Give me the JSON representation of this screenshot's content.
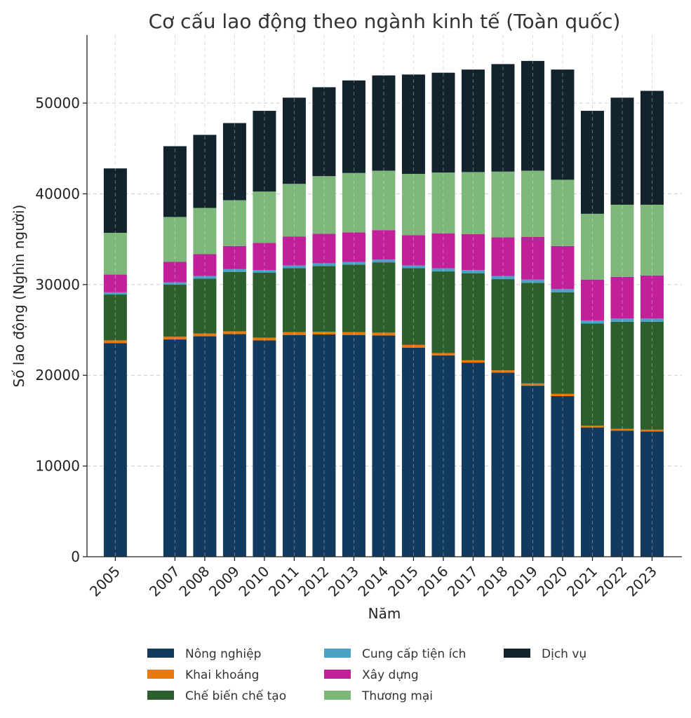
{
  "chart_data": {
    "type": "bar",
    "stacked": true,
    "title": "Cơ cấu lao động theo ngành kinh tế (Toàn quốc)",
    "xlabel": "Năm",
    "ylabel": "Số lao động (Nghìn người)",
    "ylim": [
      0,
      57500
    ],
    "yticks": [
      0,
      10000,
      20000,
      30000,
      40000,
      50000
    ],
    "grid": true,
    "legend_position": "bottom",
    "categories": [
      "2005",
      "2007",
      "2008",
      "2009",
      "2010",
      "2011",
      "2012",
      "2013",
      "2014",
      "2015",
      "2016",
      "2017",
      "2018",
      "2019",
      "2020",
      "2021",
      "2022",
      "2023"
    ],
    "x": [
      2005,
      2007,
      2008,
      2009,
      2010,
      2011,
      2012,
      2013,
      2014,
      2015,
      2016,
      2017,
      2018,
      2019,
      2020,
      2021,
      2022,
      2023
    ],
    "series": [
      {
        "name": "Nông nghiệp",
        "color": "#123a5e",
        "values": [
          23550,
          23950,
          24300,
          24550,
          23850,
          24450,
          24500,
          24450,
          24400,
          23050,
          22200,
          21400,
          20300,
          18850,
          17700,
          14250,
          13900,
          13800
        ]
      },
      {
        "name": "Khai khoáng",
        "color": "#e8790c",
        "values": [
          300,
          300,
          300,
          300,
          300,
          300,
          300,
          300,
          300,
          300,
          250,
          250,
          250,
          250,
          250,
          200,
          200,
          200
        ]
      },
      {
        "name": "Chế biến chế tạo",
        "color": "#2c5f2d",
        "values": [
          5050,
          5750,
          6050,
          6550,
          7150,
          7050,
          7250,
          7450,
          7750,
          8450,
          9000,
          9600,
          10050,
          11100,
          11200,
          11250,
          11800,
          11900
        ]
      },
      {
        "name": "Cung cấp tiện ích",
        "color": "#4aa3c4",
        "values": [
          250,
          250,
          300,
          300,
          300,
          300,
          300,
          300,
          300,
          300,
          350,
          350,
          350,
          350,
          350,
          350,
          350,
          350
        ]
      },
      {
        "name": "Xây dựng",
        "color": "#c21f9a",
        "values": [
          1950,
          2250,
          2400,
          2550,
          3000,
          3200,
          3250,
          3250,
          3250,
          3350,
          3850,
          3950,
          4250,
          4700,
          4750,
          4500,
          4600,
          4750
        ]
      },
      {
        "name": "Thương mại",
        "color": "#7db779",
        "values": [
          4600,
          4950,
          5100,
          5050,
          5650,
          5800,
          6350,
          6550,
          6550,
          6750,
          6700,
          6850,
          7250,
          7300,
          7300,
          7250,
          7950,
          7800
        ]
      },
      {
        "name": "Dịch vụ",
        "color": "#13232e",
        "values": [
          7100,
          7800,
          8050,
          8500,
          8900,
          9500,
          9800,
          10200,
          10500,
          10950,
          11000,
          11300,
          11850,
          12100,
          12150,
          11350,
          11800,
          12550
        ]
      }
    ]
  }
}
